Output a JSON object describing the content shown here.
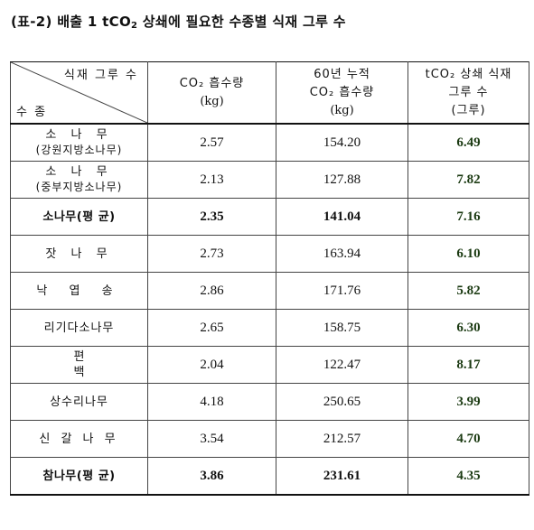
{
  "title": {
    "prefix": "(표-2) 배출 1 tCO",
    "sub": "2",
    "suffix": " 상쇄에 필요한 수종별 식재 그루 수"
  },
  "header": {
    "corner_top": "식재 그루 수",
    "corner_bottom": "수 종",
    "col2_line1": "CO₂ 흡수량",
    "col2_line2": "(kg)",
    "col3_line1": "60년 누적",
    "col3_line2": "CO₂ 흡수량",
    "col3_line3": "(kg)",
    "col4_line1": "tCO₂ 상쇄 식재",
    "col4_line2": "그루 수",
    "col4_line3": "(그루)"
  },
  "rows": [
    {
      "name": "소 나 무",
      "sub": "(강원지방소나무)",
      "absorb": "2.57",
      "cum": "154.20",
      "trees": "6.49"
    },
    {
      "name": "소 나 무",
      "sub": "(중부지방소나무)",
      "absorb": "2.13",
      "cum": "127.88",
      "trees": "7.82"
    },
    {
      "name": "소나무(평 균)",
      "sub": "",
      "absorb": "2.35",
      "cum": "141.04",
      "trees": "7.16"
    },
    {
      "name": "잣 나 무",
      "sub": "",
      "absorb": "2.73",
      "cum": "163.94",
      "trees": "6.10"
    },
    {
      "name": "낙 엽 송",
      "sub": "",
      "absorb": "2.86",
      "cum": "171.76",
      "trees": "5.82"
    },
    {
      "name": "리기다소나무",
      "sub": "",
      "absorb": "2.65",
      "cum": "158.75",
      "trees": "6.30"
    },
    {
      "name": "편 백",
      "sub": "",
      "absorb": "2.04",
      "cum": "122.47",
      "trees": "8.17"
    },
    {
      "name": "상수리나무",
      "sub": "",
      "absorb": "4.18",
      "cum": "250.65",
      "trees": "3.99"
    },
    {
      "name": "신 갈 나 무",
      "sub": "",
      "absorb": "3.54",
      "cum": "212.57",
      "trees": "4.70"
    },
    {
      "name": "참나무(평 균)",
      "sub": "",
      "absorb": "3.86",
      "cum": "231.61",
      "trees": "4.35"
    }
  ]
}
